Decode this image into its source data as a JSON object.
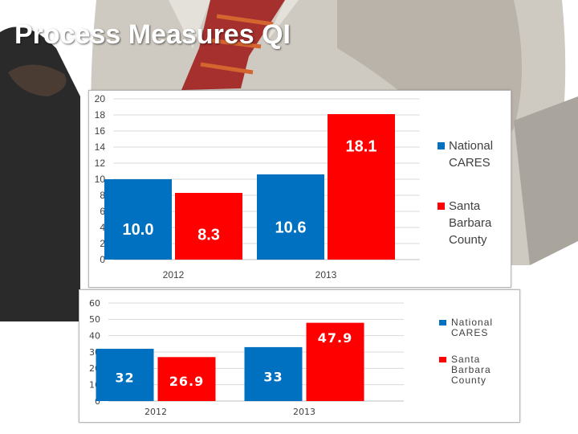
{
  "page": {
    "title": "Process Measures QI"
  },
  "colors": {
    "national": "#0070C0",
    "santa_barbara": "#FF0000",
    "axis_text": "#404040",
    "grid": "#d9d9d9",
    "label_text": "#ffffff"
  },
  "chart_data": [
    {
      "type": "bar",
      "title": "",
      "xlabel": "",
      "ylabel": "",
      "categories": [
        "2012",
        "2013"
      ],
      "series": [
        {
          "name": "National CARES",
          "values": [
            10.0,
            10.6
          ],
          "labels": [
            "10.0",
            "10.6"
          ],
          "color": "#0070C0"
        },
        {
          "name": "Santa Barbara County",
          "values": [
            8.3,
            18.1
          ],
          "labels": [
            "8.3",
            "18.1"
          ],
          "color": "#FF0000"
        }
      ],
      "ylim": [
        0,
        20
      ],
      "yticks": [
        "0",
        "2",
        "4",
        "6",
        "8",
        "10",
        "12",
        "14",
        "16",
        "18",
        "20"
      ],
      "grid": true,
      "legend_position": "right"
    },
    {
      "type": "bar",
      "title": "",
      "xlabel": "",
      "ylabel": "",
      "categories": [
        "2012",
        "2013"
      ],
      "series": [
        {
          "name": "National CARES",
          "values": [
            32,
            33
          ],
          "labels": [
            "32",
            "33"
          ],
          "color": "#0070C0"
        },
        {
          "name": "Santa Barbara County",
          "values": [
            26.9,
            47.9
          ],
          "labels": [
            "26.9",
            "47.9"
          ],
          "color": "#FF0000"
        }
      ],
      "ylim": [
        0,
        60
      ],
      "yticks": [
        "0",
        "10",
        "20",
        "30",
        "40",
        "50",
        "60"
      ],
      "grid": true,
      "legend_position": "right"
    }
  ],
  "legends": [
    {
      "items": [
        {
          "label": "National CARES"
        },
        {
          "label": "Santa Barbara County"
        }
      ]
    },
    {
      "items": [
        {
          "label": "National CARES"
        },
        {
          "label": "Santa Barbara County"
        }
      ]
    }
  ]
}
